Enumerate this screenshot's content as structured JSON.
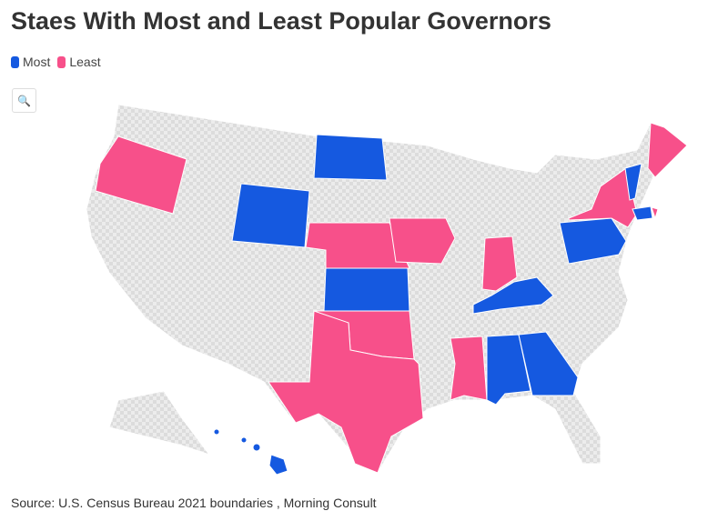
{
  "title": "Staes With Most and Least Popular Governors",
  "legend": [
    {
      "label": "Most",
      "color": "#1559e0"
    },
    {
      "label": "Least",
      "color": "#f7508a"
    }
  ],
  "zoom_icon": "search-icon",
  "source": "Source: U.S. Census Bureau 2021 boundaries , Morning Consult",
  "map": {
    "no_data_color": "#e4e4e4",
    "most": [
      "North Dakota",
      "Wyoming",
      "Kansas",
      "Kentucky",
      "Alabama",
      "Georgia",
      "Hawaii",
      "Vermont",
      "Connecticut",
      "Pennsylvania"
    ],
    "least": [
      "Oregon",
      "Nebraska",
      "Iowa",
      "Indiana",
      "Oklahoma",
      "Texas",
      "Mississippi",
      "New York",
      "Maine",
      "Rhode Island"
    ]
  }
}
